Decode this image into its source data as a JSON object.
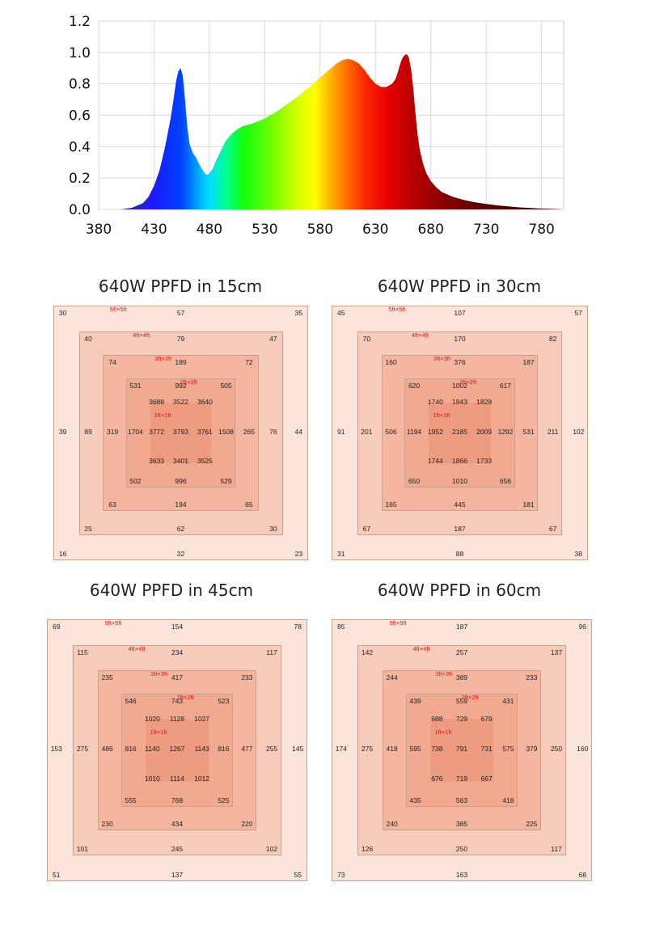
{
  "chart_data": [
    {
      "type": "area",
      "title": "",
      "xlabel": "",
      "ylabel": "",
      "xlim": [
        380,
        800
      ],
      "ylim": [
        0,
        1.2
      ],
      "x_ticks": [
        "380",
        "430",
        "480",
        "530",
        "580",
        "630",
        "680",
        "730",
        "780"
      ],
      "y_ticks": [
        "0.0",
        "0.2",
        "0.4",
        "0.6",
        "0.8",
        "1.0",
        "1.2"
      ],
      "grid": true,
      "fill": "wavelength-rainbow",
      "series": [
        {
          "x": [
            400,
            410,
            420,
            425,
            430,
            435,
            440,
            445,
            448,
            450,
            452,
            454,
            456,
            458,
            460,
            462,
            465,
            468,
            470,
            473,
            476,
            478,
            480,
            483,
            486,
            490,
            495,
            500,
            505,
            510,
            520,
            530,
            540,
            550,
            560,
            570,
            580,
            590,
            595,
            600,
            605,
            610,
            615,
            620,
            625,
            630,
            635,
            640,
            645,
            648,
            650,
            652,
            654,
            656,
            658,
            660,
            662,
            664,
            666,
            668,
            670,
            673,
            676,
            680,
            685,
            690,
            700,
            710,
            720,
            730,
            740,
            750,
            760,
            770,
            780,
            790,
            800
          ],
          "y": [
            0.0,
            0.01,
            0.04,
            0.08,
            0.15,
            0.25,
            0.4,
            0.58,
            0.72,
            0.82,
            0.88,
            0.9,
            0.85,
            0.7,
            0.53,
            0.42,
            0.36,
            0.33,
            0.3,
            0.26,
            0.23,
            0.22,
            0.23,
            0.26,
            0.31,
            0.37,
            0.44,
            0.48,
            0.51,
            0.53,
            0.55,
            0.58,
            0.62,
            0.67,
            0.72,
            0.78,
            0.84,
            0.9,
            0.93,
            0.95,
            0.96,
            0.95,
            0.93,
            0.89,
            0.84,
            0.8,
            0.78,
            0.78,
            0.8,
            0.83,
            0.87,
            0.92,
            0.96,
            0.98,
            0.99,
            0.97,
            0.9,
            0.78,
            0.62,
            0.48,
            0.38,
            0.29,
            0.23,
            0.18,
            0.14,
            0.11,
            0.08,
            0.06,
            0.045,
            0.035,
            0.026,
            0.019,
            0.013,
            0.009,
            0.005,
            0.003,
            0.0
          ]
        }
      ]
    },
    {
      "type": "table",
      "title": "640W PPFD in 15cm",
      "square_labels": [
        "5ft×5ft",
        "4ft×4ft",
        "3ft×3ft",
        "2ft×2ft",
        "1ft×1ft"
      ],
      "values": {
        "l0": {
          "top": [
            "30",
            "57",
            "35"
          ],
          "mid": [
            "39",
            "44"
          ],
          "bottom": [
            "16",
            "32",
            "23"
          ]
        },
        "l1": {
          "top": [
            "40",
            "79",
            "47"
          ],
          "mid": [
            "89",
            "76"
          ],
          "bottom": [
            "25",
            "62",
            "30"
          ]
        },
        "l2": {
          "top": [
            "74",
            "189",
            "72"
          ],
          "mid": [
            "319",
            "265"
          ],
          "bottom": [
            "63",
            "194",
            "65"
          ]
        },
        "l3": {
          "top": [
            "531",
            "992",
            "505"
          ],
          "mid": [
            "1704",
            "1508"
          ],
          "bottom": [
            "502",
            "996",
            "529"
          ]
        },
        "l4": {
          "top": [
            "3688",
            "3522",
            "3640"
          ],
          "mid": [
            "3772",
            "3793",
            "3761"
          ],
          "bottom": [
            "3633",
            "3401",
            "3525"
          ]
        }
      }
    },
    {
      "type": "table",
      "title": "640W PPFD in 30cm",
      "square_labels": [
        "5ft×5ft",
        "4ft×4ft",
        "3ft×3ft",
        "2ft×2ft",
        "1ft×1ft"
      ],
      "values": {
        "l0": {
          "top": [
            "45",
            "107",
            "57"
          ],
          "mid": [
            "91",
            "102"
          ],
          "bottom": [
            "31",
            "88",
            "38"
          ]
        },
        "l1": {
          "top": [
            "70",
            "170",
            "82"
          ],
          "mid": [
            "201",
            "211"
          ],
          "bottom": [
            "67",
            "187",
            "67"
          ]
        },
        "l2": {
          "top": [
            "160",
            "376",
            "187"
          ],
          "mid": [
            "506",
            "531"
          ],
          "bottom": [
            "165",
            "445",
            "181"
          ]
        },
        "l3": {
          "top": [
            "620",
            "1002",
            "617"
          ],
          "mid": [
            "1194",
            "1292"
          ],
          "bottom": [
            "650",
            "1010",
            "656"
          ]
        },
        "l4": {
          "top": [
            "1740",
            "1943",
            "1828"
          ],
          "mid": [
            "1952",
            "2185",
            "2009"
          ],
          "bottom": [
            "1744",
            "1866",
            "1733"
          ]
        }
      }
    },
    {
      "type": "table",
      "title": "640W PPFD in 45cm",
      "square_labels": [
        "5ft×5ft",
        "4ft×4ft",
        "3ft×3ft",
        "2ft×2ft",
        "1ft×1ft"
      ],
      "values": {
        "l0": {
          "top": [
            "69",
            "154",
            "78"
          ],
          "mid": [
            "153",
            "145"
          ],
          "bottom": [
            "51",
            "137",
            "55"
          ]
        },
        "l1": {
          "top": [
            "115",
            "234",
            "117"
          ],
          "mid": [
            "275",
            "255"
          ],
          "bottom": [
            "101",
            "245",
            "102"
          ]
        },
        "l2": {
          "top": [
            "235",
            "417",
            "233"
          ],
          "mid": [
            "486",
            "477"
          ],
          "bottom": [
            "230",
            "434",
            "220"
          ]
        },
        "l3": {
          "top": [
            "546",
            "743",
            "523"
          ],
          "mid": [
            "816",
            "816"
          ],
          "bottom": [
            "555",
            "768",
            "525"
          ]
        },
        "l4": {
          "top": [
            "1020",
            "1128",
            "1027"
          ],
          "mid": [
            "1140",
            "1267",
            "1143"
          ],
          "bottom": [
            "1010",
            "1114",
            "1012"
          ]
        }
      }
    },
    {
      "type": "table",
      "title": "640W PPFD in  60cm",
      "square_labels": [
        "5ft×5ft",
        "4ft×4ft",
        "3ft×3ft",
        "2ft×2ft",
        "1ft×1ft"
      ],
      "values": {
        "l0": {
          "top": [
            "85",
            "187",
            "96"
          ],
          "mid": [
            "174",
            "160"
          ],
          "bottom": [
            "73",
            "163",
            "68"
          ]
        },
        "l1": {
          "top": [
            "142",
            "257",
            "137"
          ],
          "mid": [
            "275",
            "250"
          ],
          "bottom": [
            "126",
            "250",
            "117"
          ]
        },
        "l2": {
          "top": [
            "244",
            "389",
            "233"
          ],
          "mid": [
            "418",
            "379"
          ],
          "bottom": [
            "240",
            "385",
            "225"
          ]
        },
        "l3": {
          "top": [
            "439",
            "559",
            "431"
          ],
          "mid": [
            "595",
            "575"
          ],
          "bottom": [
            "435",
            "563",
            "418"
          ]
        },
        "l4": {
          "top": [
            "688",
            "729",
            "679"
          ],
          "mid": [
            "738",
            "791",
            "731"
          ],
          "bottom": [
            "676",
            "719",
            "667"
          ]
        }
      }
    }
  ]
}
